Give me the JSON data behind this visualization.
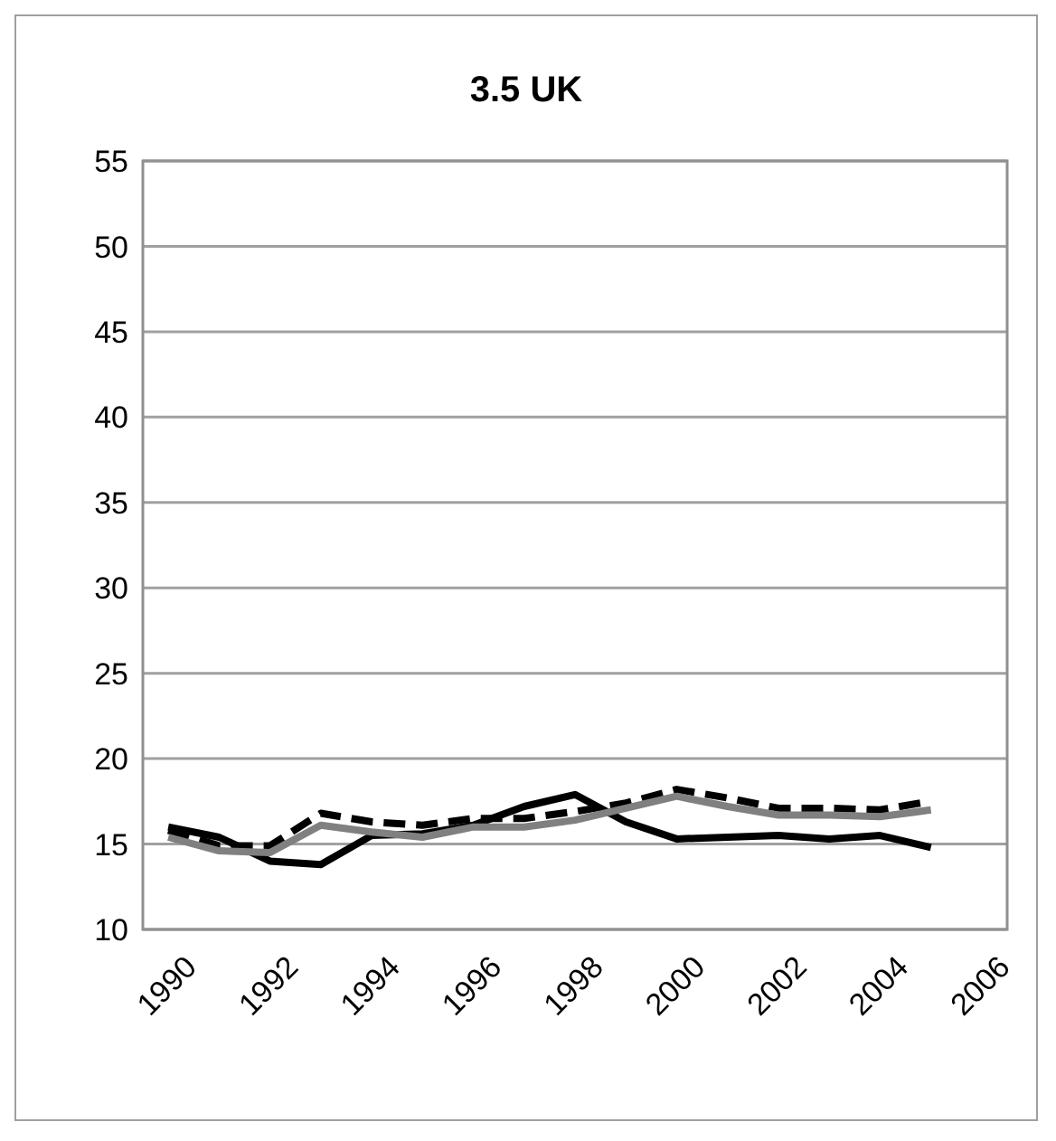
{
  "chart_data": {
    "type": "line",
    "title": "3.5 UK",
    "x": [
      1990,
      1991,
      1992,
      1993,
      1994,
      1995,
      1996,
      1997,
      1998,
      1999,
      2000,
      2001,
      2002,
      2003,
      2004,
      2005
    ],
    "series": [
      {
        "color": "#000000",
        "line_style": "solid",
        "values": [
          16.0,
          15.4,
          14.0,
          13.8,
          15.5,
          15.6,
          16.1,
          17.2,
          17.9,
          16.3,
          15.3,
          15.4,
          15.5,
          15.3,
          15.5,
          14.8
        ]
      },
      {
        "color": "#000000",
        "line_style": "dashed",
        "values": [
          15.8,
          14.9,
          14.9,
          16.8,
          16.3,
          16.1,
          16.5,
          16.5,
          16.9,
          17.4,
          18.2,
          17.7,
          17.1,
          17.1,
          17.0,
          17.5
        ]
      },
      {
        "color": "#808080",
        "line_style": "solid",
        "values": [
          15.4,
          14.6,
          14.5,
          16.1,
          15.7,
          15.4,
          16.0,
          16.0,
          16.4,
          17.1,
          17.8,
          17.2,
          16.7,
          16.7,
          16.6,
          17.0
        ]
      }
    ],
    "xlim": [
      1989.5,
      2006.5
    ],
    "xticks": [
      1990,
      1992,
      1994,
      1996,
      1998,
      2000,
      2002,
      2004,
      2006
    ],
    "ylim": [
      10,
      55
    ],
    "yticks": [
      10,
      15,
      20,
      25,
      30,
      35,
      40,
      45,
      50,
      55
    ],
    "grid": "y",
    "legend": false,
    "marker": "none"
  }
}
